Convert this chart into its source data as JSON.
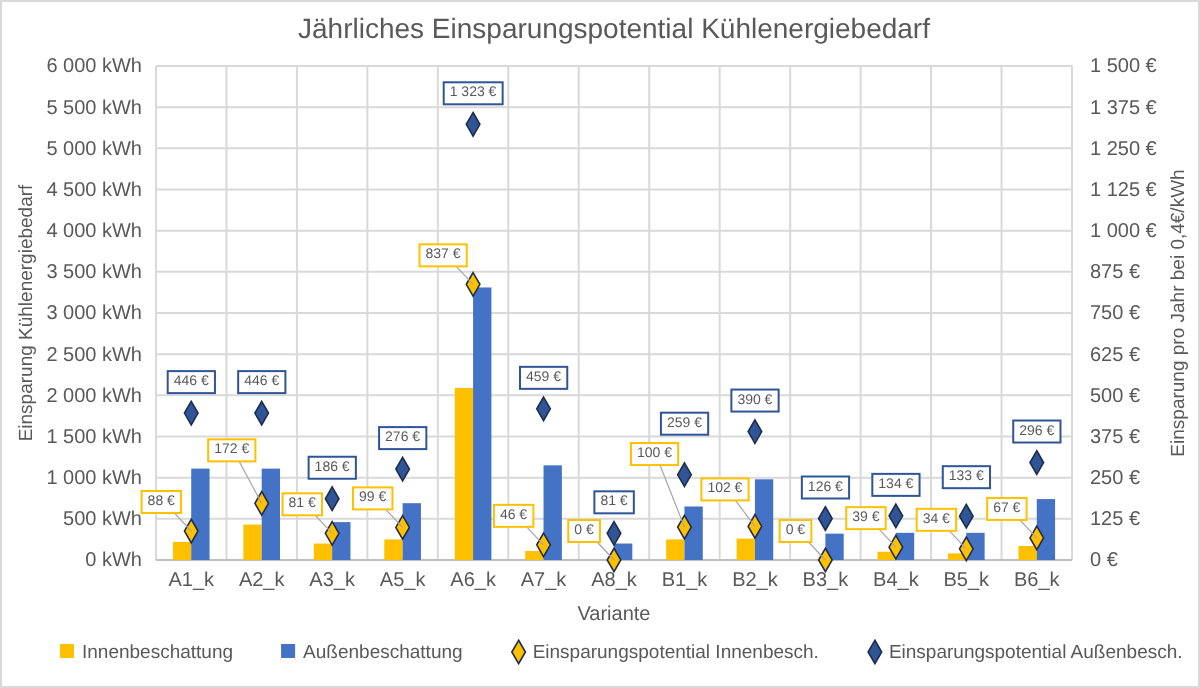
{
  "chart_data": {
    "type": "bar",
    "title": "Jährliches Einsparungspotential Kühlenergiebedarf",
    "xlabel": "Variante",
    "ylabel": "Einsparung Kühlenergiebedarf",
    "y2label": "Einsparung pro Jahr bei 0,4€/kWh",
    "categories": [
      "A1_k",
      "A2_k",
      "A3_k",
      "A5_k",
      "A6_k",
      "A7_k",
      "A8_k",
      "B1_k",
      "B2_k",
      "B3_k",
      "B4_k",
      "B5_k",
      "B6_k"
    ],
    "series": [
      {
        "name": "Innenbeschattung",
        "color": "#ffc000",
        "values": [
          220,
          430,
          200,
          250,
          2090,
          110,
          0,
          250,
          260,
          0,
          100,
          80,
          170
        ]
      },
      {
        "name": "Außenbeschattung",
        "color": "#4472c4",
        "values": [
          1110,
          1110,
          460,
          690,
          3310,
          1150,
          200,
          650,
          980,
          320,
          330,
          330,
          740
        ]
      },
      {
        "name": "Einsparungspotential Innenbesch.",
        "type": "scatter",
        "axis": "y2",
        "color": "#ffc000",
        "values": [
          88,
          172,
          81,
          99,
          837,
          46,
          0,
          100,
          102,
          0,
          39,
          34,
          67
        ],
        "value_labels": [
          "88 €",
          "172 €",
          "81 €",
          "99 €",
          "837 €",
          "46 €",
          "0 €",
          "100 €",
          "102 €",
          "0 €",
          "39 €",
          "34 €",
          "67 €"
        ]
      },
      {
        "name": "Einsparungspotential Außenbesch.",
        "type": "scatter",
        "axis": "y2",
        "color": "#2f5597",
        "values": [
          446,
          446,
          186,
          276,
          1323,
          459,
          81,
          259,
          390,
          126,
          134,
          133,
          296
        ],
        "value_labels": [
          "446 €",
          "446 €",
          "186 €",
          "276 €",
          "1 323 €",
          "459 €",
          "81 €",
          "259 €",
          "390 €",
          "126 €",
          "134 €",
          "133 €",
          "296 €"
        ]
      }
    ],
    "ylim": [
      0,
      6000
    ],
    "yticks": [
      {
        "value": 0,
        "label": "0 kWh"
      },
      {
        "value": 500,
        "label": "500 kWh"
      },
      {
        "value": 1000,
        "label": "1 000 kWh"
      },
      {
        "value": 1500,
        "label": "1 500 kWh"
      },
      {
        "value": 2000,
        "label": "2 000 kWh"
      },
      {
        "value": 2500,
        "label": "2 500 kWh"
      },
      {
        "value": 3000,
        "label": "3 000 kWh"
      },
      {
        "value": 3500,
        "label": "3 500 kWh"
      },
      {
        "value": 4000,
        "label": "4 000 kWh"
      },
      {
        "value": 4500,
        "label": "4 500 kWh"
      },
      {
        "value": 5000,
        "label": "5 000 kWh"
      },
      {
        "value": 5500,
        "label": "5 500 kWh"
      },
      {
        "value": 6000,
        "label": "6 000 kWh"
      }
    ],
    "y2lim": [
      0,
      1500
    ],
    "y2ticks": [
      {
        "value": 0,
        "label": "0 €"
      },
      {
        "value": 125,
        "label": "125 €"
      },
      {
        "value": 250,
        "label": "250 €"
      },
      {
        "value": 375,
        "label": "375 €"
      },
      {
        "value": 500,
        "label": "500 €"
      },
      {
        "value": 625,
        "label": "625 €"
      },
      {
        "value": 750,
        "label": "750 €"
      },
      {
        "value": 875,
        "label": "875 €"
      },
      {
        "value": 1000,
        "label": "1 000 €"
      },
      {
        "value": 1125,
        "label": "1 125 €"
      },
      {
        "value": 1250,
        "label": "1 250 €"
      },
      {
        "value": 1375,
        "label": "1 375 €"
      },
      {
        "value": 1500,
        "label": "1 500 €"
      }
    ],
    "grid": true,
    "legend": "bottom",
    "marker": "diamond"
  }
}
